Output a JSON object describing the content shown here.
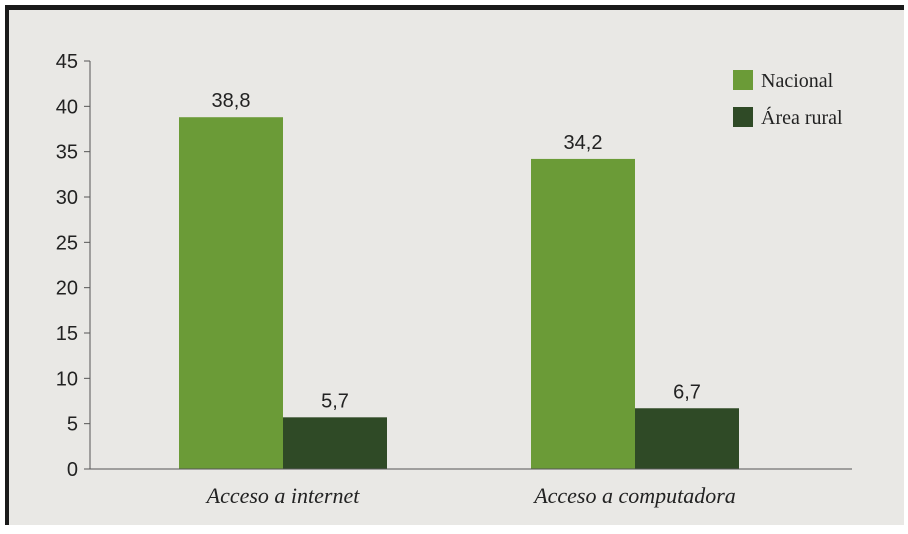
{
  "chart_data": {
    "type": "bar",
    "categories": [
      "Acceso a internet",
      "Acceso a computadora"
    ],
    "series": [
      {
        "name": "Nacional",
        "values": [
          38.8,
          34.2
        ],
        "labels": [
          "38,8",
          "34,2"
        ],
        "color": "#6b9b37"
      },
      {
        "name": "Área rural",
        "values": [
          5.7,
          6.7
        ],
        "labels": [
          "5,7",
          "6,7"
        ],
        "color": "#2f4a26"
      }
    ],
    "ylim": [
      0,
      45
    ],
    "yticks": [
      0,
      5,
      10,
      15,
      20,
      25,
      30,
      35,
      40,
      45
    ],
    "grid": false,
    "legend_position": "top-right",
    "title": "",
    "xlabel": "",
    "ylabel": ""
  }
}
